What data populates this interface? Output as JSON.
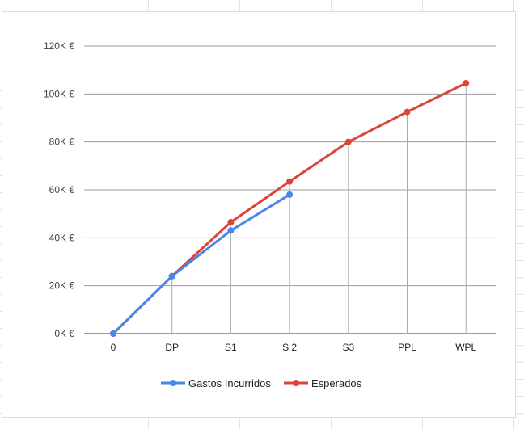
{
  "chart_data": {
    "type": "line",
    "categories": [
      "0",
      "DP",
      "S1",
      "S 2",
      "S3",
      "PPL",
      "WPL"
    ],
    "series": [
      {
        "name": "Gastos Incurridos",
        "color": "#4a86e8",
        "values": [
          0,
          24000,
          43000,
          58000,
          null,
          null,
          null
        ]
      },
      {
        "name": "Esperados",
        "color": "#db4437",
        "values": [
          0,
          24000,
          46500,
          63500,
          80000,
          92500,
          104500
        ]
      }
    ],
    "ylim": [
      0,
      120000
    ],
    "yticks": [
      {
        "value": 0,
        "label": "0K €"
      },
      {
        "value": 20000,
        "label": "20K €"
      },
      {
        "value": 40000,
        "label": "40K €"
      },
      {
        "value": 60000,
        "label": "60K €"
      },
      {
        "value": 80000,
        "label": "80K €"
      },
      {
        "value": 100000,
        "label": "100K €"
      },
      {
        "value": 120000,
        "label": "120K €"
      }
    ],
    "grid": true,
    "vertical_drop_lines": true,
    "legend_position": "bottom",
    "title": "",
    "xlabel": "",
    "ylabel": ""
  }
}
